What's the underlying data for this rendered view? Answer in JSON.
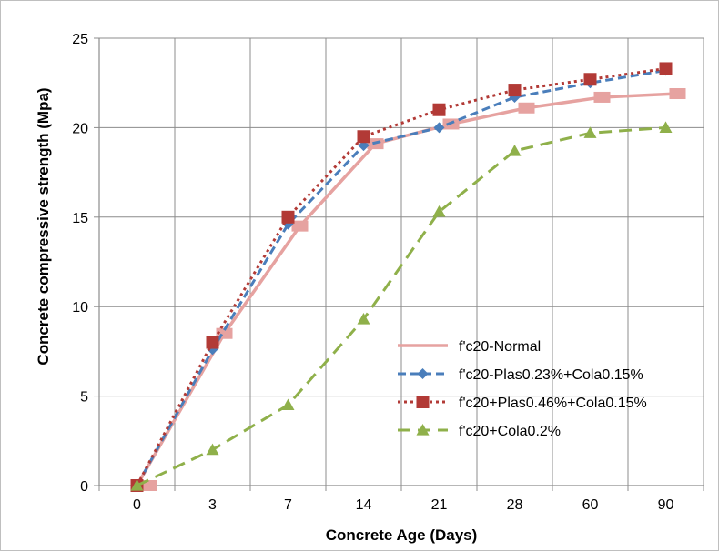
{
  "chart_data": {
    "type": "line",
    "title": "",
    "xlabel": "Concrete Age (Days)",
    "ylabel": "Concrete compressive strength (Mpa)",
    "categories": [
      "0",
      "3",
      "7",
      "14",
      "21",
      "28",
      "60",
      "90"
    ],
    "ylim": [
      0,
      25
    ],
    "yticks": [
      0,
      5,
      10,
      15,
      20,
      25
    ],
    "grid": true,
    "legend_position": "bottom-right",
    "series": [
      {
        "name": "f'c20-Normal",
        "values": [
          0,
          8.5,
          14.5,
          19.1,
          20.2,
          21.1,
          21.7,
          21.9
        ],
        "color": "#e6a2a0",
        "line": "solid",
        "marker": "square"
      },
      {
        "name": "f'c20-Plas0.23%+Cola0.15%",
        "values": [
          0,
          7.6,
          14.6,
          19.0,
          20.0,
          21.7,
          22.5,
          23.2
        ],
        "color": "#4a7ebb",
        "line": "dashed",
        "marker": "diamond"
      },
      {
        "name": "f'c20+Plas0.46%+Cola0.15%",
        "values": [
          0,
          8.0,
          15.0,
          19.5,
          21.0,
          22.1,
          22.7,
          23.3
        ],
        "color": "#b23a36",
        "line": "dotted",
        "marker": "square"
      },
      {
        "name": "f'c20+Cola0.2%",
        "values": [
          0,
          2.0,
          4.5,
          9.3,
          15.3,
          18.7,
          19.7,
          20.0
        ],
        "color": "#8fb04a",
        "line": "longdash",
        "marker": "triangle"
      }
    ]
  }
}
